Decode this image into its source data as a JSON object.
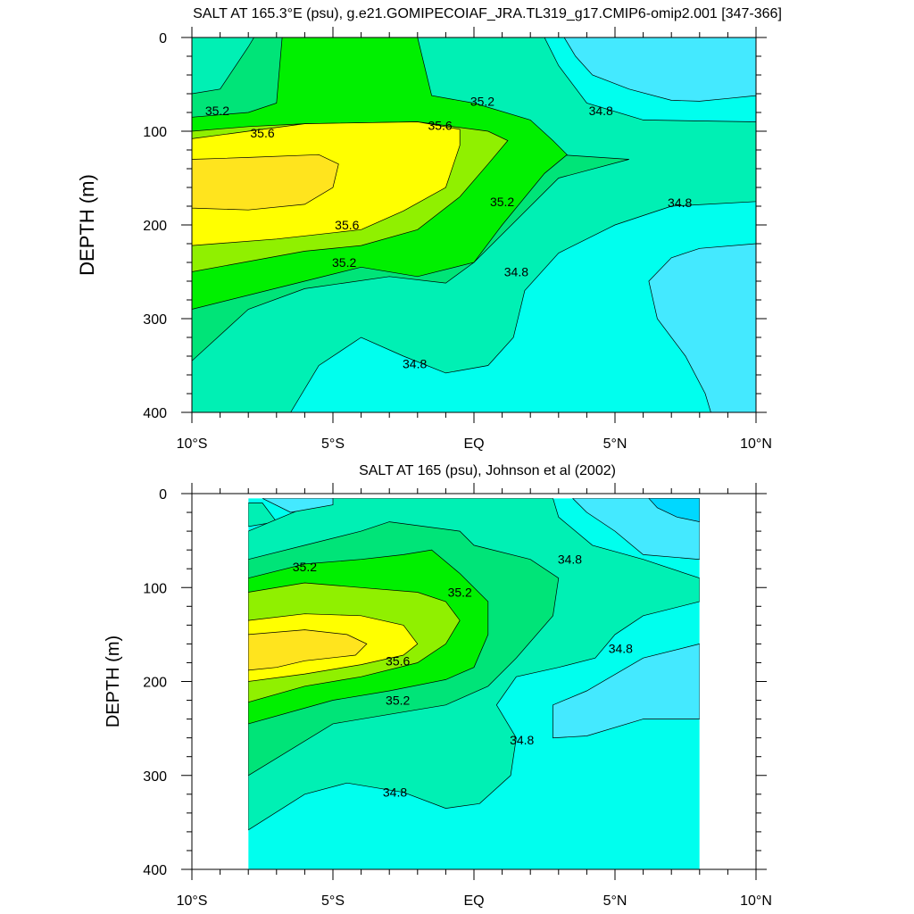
{
  "colors": {
    "lt34_4": "#00d8ff",
    "s34_4_34_6": "#44e9ff",
    "s34_6_34_8": "#00ffee",
    "s34_8_35_0": "#00f0b4",
    "s35_0_35_2": "#00e478",
    "s35_2_35_4": "#00f000",
    "s35_4_35_6": "#90f000",
    "s35_6_35_8": "#ffff00",
    "gt35_8": "#ffe41e"
  },
  "chart_data": [
    {
      "type": "contour",
      "title": "SALT AT 165.3°E (psu), g.e21.GOMIPECOIAF_JRA.TL319_g17.CMIP6-omip2.001 [347-366]",
      "ylabel": "DEPTH (m)",
      "xlim": [
        -10,
        10
      ],
      "ylim": [
        400,
        0
      ],
      "x_tick_labels": [
        "10°S",
        "5°S",
        "EQ",
        "5°N",
        "10°N"
      ],
      "y_tick_labels": [
        "0",
        "100",
        "200",
        "300",
        "400"
      ],
      "data_extent": {
        "x": [
          -10,
          10
        ],
        "y": [
          0,
          400
        ]
      },
      "contour_labels": [
        {
          "text": "35.2",
          "x": -9.1,
          "y": 78
        },
        {
          "text": "35.6",
          "x": -7.5,
          "y": 102
        },
        {
          "text": "35.6",
          "x": -1.2,
          "y": 94
        },
        {
          "text": "35.2",
          "x": 0.3,
          "y": 68
        },
        {
          "text": "34.8",
          "x": 4.5,
          "y": 78
        },
        {
          "text": "35.2",
          "x": 1.0,
          "y": 175
        },
        {
          "text": "34.8",
          "x": 7.3,
          "y": 176
        },
        {
          "text": "35.6",
          "x": -4.5,
          "y": 200
        },
        {
          "text": "35.2",
          "x": -4.6,
          "y": 240
        },
        {
          "text": "34.8",
          "x": 1.5,
          "y": 250
        },
        {
          "text": "34.8",
          "x": -2.1,
          "y": 348
        }
      ]
    },
    {
      "type": "contour",
      "title": "SALT AT 165 (psu), Johnson et al (2002)",
      "ylabel": "DEPTH (m)",
      "xlim": [
        -10,
        10
      ],
      "ylim": [
        400,
        0
      ],
      "x_tick_labels": [
        "10°S",
        "5°S",
        "EQ",
        "5°N",
        "10°N"
      ],
      "y_tick_labels": [
        "0",
        "100",
        "200",
        "300",
        "400"
      ],
      "data_extent": {
        "x": [
          -8,
          8
        ],
        "y": [
          5,
          400
        ]
      },
      "contour_labels": [
        {
          "text": "35.2",
          "x": -6.0,
          "y": 78
        },
        {
          "text": "35.2",
          "x": -0.5,
          "y": 105
        },
        {
          "text": "34.8",
          "x": 3.4,
          "y": 70
        },
        {
          "text": "35.6",
          "x": -2.7,
          "y": 178
        },
        {
          "text": "35.2",
          "x": -2.7,
          "y": 220
        },
        {
          "text": "34.8",
          "x": 5.2,
          "y": 165
        },
        {
          "text": "34.8",
          "x": 1.7,
          "y": 262
        },
        {
          "text": "34.8",
          "x": -2.8,
          "y": 318
        }
      ]
    }
  ]
}
